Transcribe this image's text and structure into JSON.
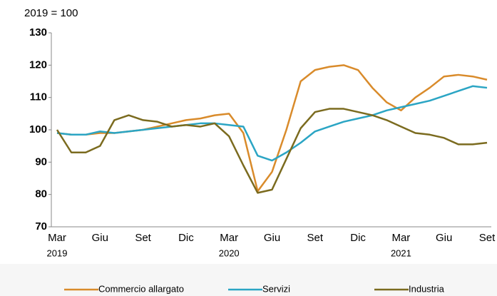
{
  "chart_data": {
    "type": "line",
    "y_label": "2019 = 100",
    "categories": [
      "Mar",
      null,
      null,
      "Giu",
      null,
      null,
      "Set",
      null,
      null,
      "Dic",
      null,
      null,
      "Mar",
      null,
      null,
      "Giu",
      null,
      null,
      "Set",
      null,
      null,
      "Dic",
      null,
      null,
      "Mar",
      null,
      null,
      "Giu",
      null,
      null,
      "Set"
    ],
    "category_years": [
      "2019",
      null,
      null,
      null,
      null,
      null,
      null,
      null,
      null,
      null,
      null,
      null,
      "2020",
      null,
      null,
      null,
      null,
      null,
      null,
      null,
      null,
      null,
      null,
      null,
      "2021",
      null,
      null,
      null,
      null,
      null,
      null
    ],
    "ylim": [
      70,
      130
    ],
    "yticks": [
      70,
      80,
      90,
      100,
      110,
      120,
      130
    ],
    "legend": "bottom",
    "series": [
      {
        "name": "Commercio allargato",
        "color": "#d98b2b",
        "values": [
          99,
          98.5,
          98.5,
          99,
          99,
          99.5,
          100,
          101,
          102,
          103,
          103.5,
          104.5,
          105,
          99,
          81,
          87,
          100,
          115,
          118.5,
          119.5,
          120,
          118.5,
          113,
          108.5,
          106,
          110,
          113,
          116.5,
          117,
          116.5,
          115.5
        ]
      },
      {
        "name": "Servizi",
        "color": "#2ba5c4",
        "values": [
          99,
          98.5,
          98.5,
          99.5,
          99,
          99.5,
          100,
          100.5,
          101,
          101.5,
          102,
          102,
          101.5,
          101,
          92,
          90.5,
          93,
          96,
          99.5,
          101,
          102.5,
          103.5,
          104.5,
          106,
          107,
          108,
          109,
          110.5,
          112,
          113.5,
          113
        ]
      },
      {
        "name": "Industria",
        "color": "#7b6b1f",
        "values": [
          100,
          93,
          93,
          95,
          103,
          104.5,
          103,
          102.5,
          101,
          101.5,
          101,
          102,
          98,
          89,
          80.5,
          81.5,
          91,
          100.5,
          105.5,
          106.5,
          106.5,
          105.5,
          104.5,
          103,
          101,
          99,
          98.5,
          97.5,
          95.5,
          95.5,
          96
        ]
      }
    ]
  }
}
